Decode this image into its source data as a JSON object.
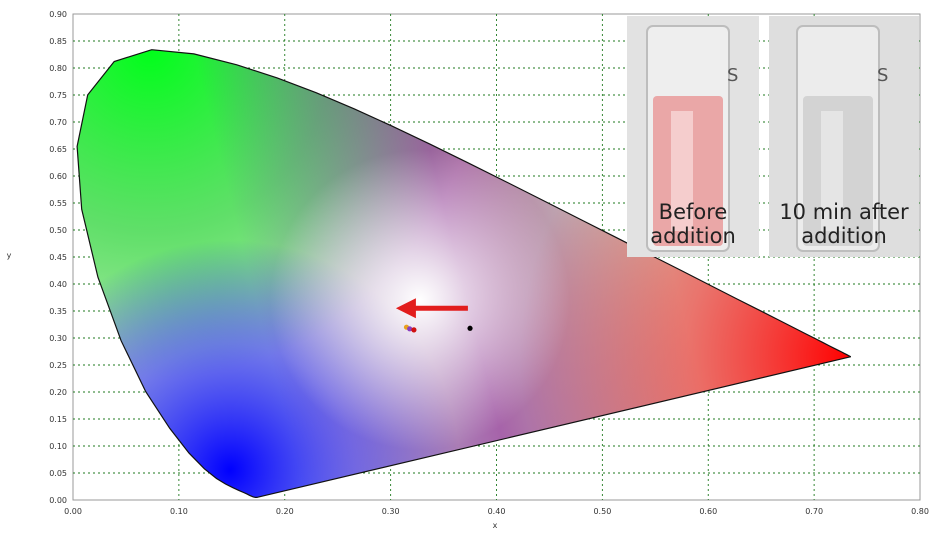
{
  "chart_data": {
    "type": "scatter",
    "title": "",
    "xlabel": "x",
    "ylabel": "y",
    "xlim": [
      0.0,
      0.8
    ],
    "ylim": [
      0.0,
      0.9
    ],
    "xticks": [
      "0.00",
      "0.10",
      "0.20",
      "0.30",
      "0.40",
      "0.50",
      "0.60",
      "0.70",
      "0.80"
    ],
    "yticks": [
      "0.00",
      "0.05",
      "0.10",
      "0.15",
      "0.20",
      "0.25",
      "0.30",
      "0.35",
      "0.40",
      "0.45",
      "0.50",
      "0.55",
      "0.60",
      "0.65",
      "0.70",
      "0.75",
      "0.80",
      "0.85",
      "0.90"
    ],
    "grid": true,
    "background": "CIE 1931 chromaticity diagram",
    "series": [
      {
        "points": [
          {
            "x": 0.375,
            "y": 0.318,
            "color": "#000000"
          }
        ]
      },
      {
        "points": [
          {
            "x": 0.315,
            "y": 0.32,
            "color": "#e8a020"
          },
          {
            "x": 0.318,
            "y": 0.317,
            "color": "#8a3fc0"
          },
          {
            "x": 0.322,
            "y": 0.315,
            "color": "#d01010"
          }
        ]
      }
    ],
    "annotations": [
      {
        "type": "arrow",
        "from": {
          "x": 0.373,
          "y": 0.355
        },
        "to": {
          "x": 0.305,
          "y": 0.355
        },
        "color": "#e21d1d"
      }
    ]
  },
  "inset_photos": [
    {
      "caption_lines": [
        "Before",
        "addition"
      ],
      "liquid_color": "#e99a9a"
    },
    {
      "caption_lines": [
        "10 min after",
        "addition"
      ],
      "liquid_color": "#cfcfcf"
    }
  ]
}
